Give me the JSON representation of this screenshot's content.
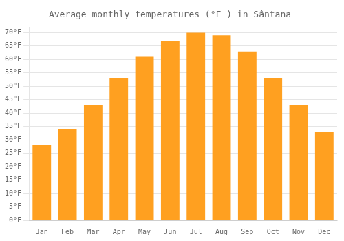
{
  "chart_data": {
    "type": "bar",
    "title": "Average monthly temperatures (°F ) in Sântana",
    "categories": [
      "Jan",
      "Feb",
      "Mar",
      "Apr",
      "May",
      "Jun",
      "Jul",
      "Aug",
      "Sep",
      "Oct",
      "Nov",
      "Dec"
    ],
    "values": [
      28,
      34,
      43,
      53,
      61,
      67,
      70,
      69,
      63,
      53,
      43,
      33
    ],
    "color": "#FFA020",
    "ylim": [
      0,
      72
    ],
    "yticks": [
      {
        "value": 0,
        "label": "0°F"
      },
      {
        "value": 5,
        "label": "5°F"
      },
      {
        "value": 10,
        "label": "10°F"
      },
      {
        "value": 15,
        "label": "15°F"
      },
      {
        "value": 20,
        "label": "20°F"
      },
      {
        "value": 25,
        "label": "25°F"
      },
      {
        "value": 30,
        "label": "30°F"
      },
      {
        "value": 35,
        "label": "35°F"
      },
      {
        "value": 40,
        "label": "40°F"
      },
      {
        "value": 45,
        "label": "45°F"
      },
      {
        "value": 50,
        "label": "50°F"
      },
      {
        "value": 55,
        "label": "55°F"
      },
      {
        "value": 60,
        "label": "60°F"
      },
      {
        "value": 65,
        "label": "65°F"
      },
      {
        "value": 70,
        "label": "70°F"
      }
    ],
    "grid": true
  }
}
